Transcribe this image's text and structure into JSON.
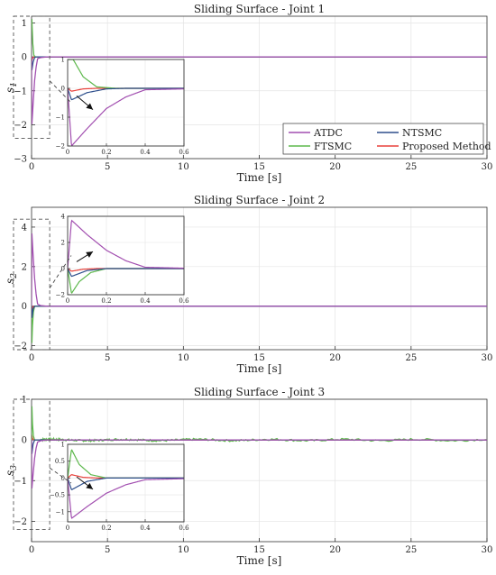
{
  "colors": {
    "ATDC": "#a24fb0",
    "NTSMC": "#2e4f8c",
    "FTSMC": "#5db84c",
    "Proposed Method": "#e8403a",
    "grid": "#e4e4e4",
    "axis": "#333333"
  },
  "legend": {
    "entries": [
      "ATDC",
      "NTSMC",
      "FTSMC",
      "Proposed Method"
    ],
    "placement": "inside main plot of joint 1, lower-right"
  },
  "chart_data": [
    {
      "type": "line",
      "title": "Sliding Surface - Joint 1",
      "xlabel": "Time [s]",
      "ylabel": "s1",
      "ylabel_main": "s",
      "ylabel_sub": "1",
      "xlim": [
        0,
        30
      ],
      "ylim": [
        -3,
        1.2
      ],
      "xticks": [
        "0",
        "5",
        "10",
        "15",
        "20",
        "25",
        "30"
      ],
      "yticks": [
        "1",
        "0",
        "-1",
        "-2",
        "-3"
      ],
      "grid": true,
      "series": [
        {
          "name": "ATDC",
          "decay": "exp",
          "x": [
            0,
            0.02,
            0.1,
            0.2,
            0.3,
            0.4,
            0.6,
            1,
            30
          ],
          "y": [
            0,
            -2,
            -1.4,
            -0.7,
            -0.3,
            -0.05,
            -0.02,
            0,
            0
          ]
        },
        {
          "name": "NTSMC",
          "x": [
            0,
            0.02,
            0.1,
            0.2,
            0.3,
            0.6,
            30
          ],
          "y": [
            0,
            -0.4,
            -0.15,
            -0.02,
            0,
            0,
            0
          ]
        },
        {
          "name": "FTSMC",
          "x": [
            0,
            0.02,
            0.08,
            0.15,
            0.25,
            0.6,
            30
          ],
          "y": [
            1.1,
            1.1,
            0.4,
            0.05,
            0,
            0,
            0
          ]
        },
        {
          "name": "Proposed Method",
          "x": [
            0,
            0.02,
            0.08,
            0.15,
            0.6,
            30
          ],
          "y": [
            0,
            -0.1,
            -0.02,
            0,
            0,
            0
          ]
        }
      ],
      "inset": {
        "xlim": [
          0,
          0.6
        ],
        "ylim": [
          -2,
          1
        ],
        "xticks": [
          "0",
          "0.2",
          "0.4",
          "0.6"
        ],
        "yticks": [
          "1",
          "0",
          "-1",
          "-2"
        ],
        "zoom_window_x": [
          0,
          0.6
        ],
        "zoom_window_y": [
          -2.4,
          1.2
        ]
      }
    },
    {
      "type": "line",
      "title": "Sliding Surface - Joint 2",
      "xlabel": "Time [s]",
      "ylabel": "s2",
      "ylabel_main": "s",
      "ylabel_sub": "2",
      "xlim": [
        0,
        30
      ],
      "ylim": [
        -2.2,
        5
      ],
      "xticks": [
        "0",
        "5",
        "10",
        "15",
        "20",
        "25",
        "30"
      ],
      "yticks": [
        "4",
        "2",
        "0",
        "-2"
      ],
      "grid": true,
      "series": [
        {
          "name": "ATDC",
          "x": [
            0,
            0.02,
            0.1,
            0.2,
            0.3,
            0.4,
            0.6,
            1,
            30
          ],
          "y": [
            0,
            3.7,
            2.6,
            1.4,
            0.6,
            0.1,
            0.03,
            0,
            0
          ]
        },
        {
          "name": "NTSMC",
          "x": [
            0,
            0.02,
            0.1,
            0.2,
            0.3,
            0.6,
            30
          ],
          "y": [
            0,
            -0.6,
            -0.15,
            0,
            0,
            0,
            0
          ]
        },
        {
          "name": "FTSMC",
          "x": [
            0,
            0.02,
            0.06,
            0.12,
            0.2,
            0.6,
            30
          ],
          "y": [
            0,
            -1.9,
            -1.0,
            -0.3,
            0,
            0,
            0
          ]
        },
        {
          "name": "Proposed Method",
          "x": [
            0,
            0.02,
            0.08,
            0.15,
            0.6,
            30
          ],
          "y": [
            0,
            -0.2,
            -0.05,
            0,
            0,
            0
          ]
        }
      ],
      "inset": {
        "xlim": [
          0,
          0.6
        ],
        "ylim": [
          -2,
          4
        ],
        "xticks": [
          "0",
          "0.2",
          "0.4",
          "0.6"
        ],
        "yticks": [
          "4",
          "2",
          "0",
          "-2"
        ],
        "zoom_window_x": [
          0,
          0.6
        ],
        "zoom_window_y": [
          -2.2,
          4.4
        ]
      }
    },
    {
      "type": "line",
      "title": "Sliding Surface - Joint 3",
      "xlabel": "Time [s]",
      "ylabel": "s3",
      "ylabel_main": "s",
      "ylabel_sub": "3",
      "xlim": [
        0,
        30
      ],
      "ylim": [
        -2.5,
        1
      ],
      "xticks": [
        "0",
        "5",
        "10",
        "15",
        "20",
        "25",
        "30"
      ],
      "yticks": [
        "1",
        "0",
        "-1",
        "-2"
      ],
      "grid": true,
      "series": [
        {
          "name": "ATDC",
          "x": [
            0,
            0.02,
            0.1,
            0.2,
            0.3,
            0.4,
            0.6,
            1,
            30
          ],
          "y": [
            0,
            -1.2,
            -0.85,
            -0.45,
            -0.2,
            -0.05,
            -0.02,
            0,
            0
          ]
        },
        {
          "name": "NTSMC",
          "x": [
            0,
            0.02,
            0.1,
            0.2,
            0.3,
            0.6,
            30
          ],
          "y": [
            0,
            -0.35,
            -0.1,
            0,
            0,
            0,
            0
          ]
        },
        {
          "name": "FTSMC",
          "noise": 0.025,
          "x": [
            0,
            0.02,
            0.06,
            0.12,
            0.2,
            0.6,
            30
          ],
          "y": [
            0,
            0.85,
            0.4,
            0.1,
            0,
            0,
            0
          ]
        },
        {
          "name": "Proposed Method",
          "x": [
            0,
            0.02,
            0.08,
            0.15,
            0.6,
            30
          ],
          "y": [
            0,
            0.1,
            0.02,
            0,
            0,
            0
          ]
        }
      ],
      "inset": {
        "xlim": [
          0,
          0.6
        ],
        "ylim": [
          -1.3,
          1
        ],
        "xticks": [
          "0",
          "0.2",
          "0.4",
          "0.6"
        ],
        "yticks": [
          "1",
          "0.5",
          "0",
          "-0.5",
          "-1"
        ],
        "zoom_window_x": [
          0,
          0.6
        ],
        "zoom_window_y": [
          -2.2,
          1.0
        ]
      }
    }
  ]
}
